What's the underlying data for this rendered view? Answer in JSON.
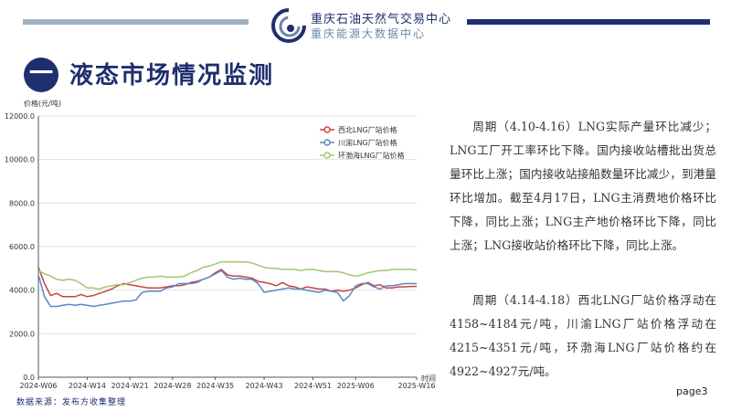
{
  "header": {
    "brand_name": "重庆石油天然气交易中心",
    "brand_sub": "重庆能源大数据中心",
    "colors": {
      "left_bar": "#9fb2c3",
      "right_bar": "#1f2e6e",
      "title": "#1f2e6e"
    },
    "logo_icon": "swirl-logo-icon"
  },
  "section": {
    "number": "一",
    "title": "液态市场情况监测"
  },
  "chart_data": {
    "type": "line",
    "ylabel": "价格(元/吨)",
    "xlabel": "时间",
    "ylim": [
      0,
      12000
    ],
    "y_ticks": [
      0,
      2000,
      4000,
      6000,
      8000,
      10000,
      12000
    ],
    "y_tick_labels": [
      "0.0",
      "2000.0",
      "4000.0",
      "6000.0",
      "8000.0",
      "10000.0",
      "12000.0"
    ],
    "x_ticks": [
      "2024-W06",
      "2024-W14",
      "2024-W21",
      "2024-W28",
      "2024-W35",
      "2024-W43",
      "2024-W51",
      "2025-W06",
      "2025-W16"
    ],
    "x_tick_index": [
      0,
      8,
      15,
      22,
      29,
      37,
      45,
      52,
      62
    ],
    "grid": "horizontal",
    "legend_position": "top-right",
    "series": [
      {
        "name": "西北LNG厂站价格",
        "color": "#c8453f",
        "values": [
          5050,
          4300,
          3750,
          3850,
          3700,
          3700,
          3700,
          3800,
          3700,
          3750,
          3850,
          3950,
          4050,
          4200,
          4300,
          4250,
          4200,
          4150,
          4100,
          4100,
          4100,
          4150,
          4200,
          4200,
          4250,
          4350,
          4400,
          4500,
          4600,
          4800,
          4950,
          4700,
          4650,
          4650,
          4600,
          4550,
          4400,
          4350,
          4300,
          4200,
          4350,
          4200,
          4150,
          4050,
          4150,
          4100,
          4050,
          4050,
          3950,
          4000,
          3950,
          4000,
          4100,
          4250,
          4350,
          4200,
          4250,
          4100,
          4100,
          4150,
          4150,
          4170,
          4170
        ]
      },
      {
        "name": "川渝LNG厂站价格",
        "color": "#5a89c3",
        "values": [
          4700,
          3700,
          3250,
          3250,
          3300,
          3350,
          3300,
          3350,
          3300,
          3250,
          3300,
          3350,
          3400,
          3450,
          3500,
          3500,
          3550,
          3900,
          3950,
          3950,
          3950,
          4100,
          4150,
          4300,
          4300,
          4300,
          4350,
          4500,
          4600,
          4750,
          4900,
          4600,
          4500,
          4550,
          4500,
          4500,
          4300,
          3900,
          3950,
          4000,
          4050,
          4100,
          4050,
          4050,
          4000,
          3950,
          3900,
          4000,
          3950,
          3900,
          3500,
          3750,
          4200,
          4300,
          4300,
          4150,
          4050,
          4200,
          4200,
          4250,
          4300,
          4300,
          4300
        ]
      },
      {
        "name": "环渤海LNG厂站价格",
        "color": "#9fc870",
        "values": [
          4900,
          4750,
          4650,
          4500,
          4450,
          4500,
          4450,
          4300,
          4100,
          4100,
          4050,
          4150,
          4200,
          4250,
          4250,
          4350,
          4450,
          4550,
          4600,
          4600,
          4650,
          4600,
          4600,
          4600,
          4650,
          4800,
          4900,
          5050,
          5100,
          5200,
          5300,
          5300,
          5300,
          5300,
          5300,
          5250,
          5150,
          5050,
          5000,
          5000,
          4950,
          4950,
          4950,
          4900,
          4950,
          4950,
          4900,
          4850,
          4850,
          4850,
          4800,
          4700,
          4650,
          4700,
          4800,
          4850,
          4900,
          4900,
          4950,
          4950,
          4950,
          4950,
          4924
        ]
      }
    ]
  },
  "paragraphs": [
    "周期（4.10-4.16）LNG实际产量环比减少；LNG工厂开工率环比下降。国内接收站槽批出货总量环比上涨；国内接收站接船数量环比减少，到港量环比增加。截至4月17日，LNG主消费地价格环比下降，同比上涨；LNG主产地价格环比下降，同比上涨；LNG接收站价格环比下降，同比上涨。",
    "周期（4.14-4.18）西北LNG厂站价格浮动在4158~4184元/吨，川渝LNG厂站价格浮动在4215~4351元/吨，环渤海LNG厂站价格约在4922~4927元/吨。"
  ],
  "footer": {
    "source": "数据来源：发布方收集整理",
    "page": "page3"
  }
}
